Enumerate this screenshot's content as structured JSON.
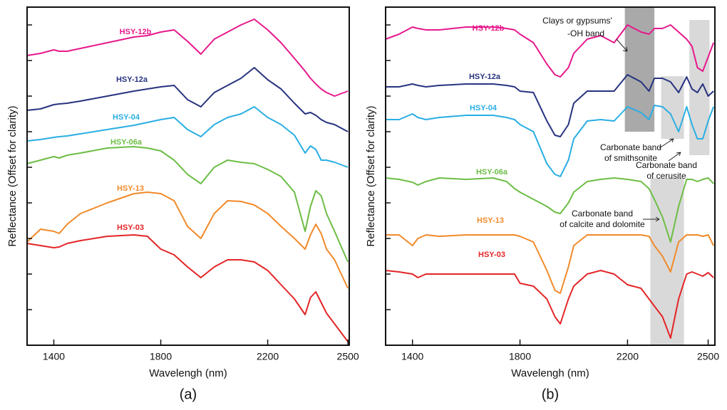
{
  "chart_data": [
    {
      "type": "line",
      "panel_label": "(a)",
      "xlabel": "Wavelengh (nm)",
      "ylabel": "Reflectance (Offset for clarity)",
      "xlim": [
        1300,
        2505
      ],
      "ylim": [
        0,
        475
      ],
      "xticks": [
        1400,
        1800,
        2200,
        2500
      ],
      "yticks": [
        50,
        100,
        150,
        200,
        250,
        300,
        350,
        400,
        450
      ],
      "x": [
        1300,
        1350,
        1400,
        1420,
        1450,
        1500,
        1600,
        1700,
        1750,
        1800,
        1850,
        1900,
        1950,
        2000,
        2050,
        2100,
        2150,
        2200,
        2250,
        2300,
        2340,
        2360,
        2380,
        2400,
        2420,
        2450,
        2500
      ],
      "series": [
        {
          "name": "HSY-12b",
          "color": "#e6198c",
          "values": [
            407,
            410,
            415,
            413,
            413,
            417,
            425,
            433,
            435,
            440,
            443,
            427,
            409,
            430,
            440,
            450,
            458,
            443,
            425,
            403,
            385,
            375,
            367,
            360,
            355,
            350,
            357
          ]
        },
        {
          "name": "HSY-12a",
          "color": "#27337f",
          "values": [
            330,
            332,
            338,
            339,
            340,
            343,
            350,
            357,
            360,
            363,
            365,
            345,
            335,
            355,
            365,
            375,
            390,
            373,
            360,
            340,
            325,
            327,
            323,
            317,
            313,
            310,
            300
          ]
        },
        {
          "name": "HSY-04",
          "color": "#2aaee3",
          "values": [
            287,
            289,
            292,
            293,
            294,
            297,
            303,
            309,
            313,
            317,
            320,
            303,
            293,
            310,
            320,
            325,
            335,
            320,
            310,
            295,
            270,
            280,
            275,
            260,
            260,
            257,
            250
          ]
        },
        {
          "name": "HSY-06a",
          "color": "#6cbd45",
          "values": [
            255,
            260,
            265,
            263,
            267,
            270,
            277,
            279,
            277,
            273,
            260,
            240,
            227,
            250,
            260,
            257,
            255,
            247,
            237,
            215,
            160,
            195,
            217,
            210,
            185,
            160,
            117
          ]
        },
        {
          "name": "HSY-13",
          "color": "#f18a2a",
          "values": [
            145,
            163,
            160,
            157,
            170,
            185,
            200,
            213,
            215,
            213,
            203,
            167,
            150,
            185,
            203,
            202,
            197,
            185,
            167,
            150,
            135,
            155,
            170,
            157,
            135,
            120,
            80
          ]
        },
        {
          "name": "HSY-03",
          "color": "#e42527",
          "values": [
            143,
            140,
            137,
            138,
            143,
            147,
            153,
            155,
            153,
            135,
            127,
            110,
            95,
            110,
            120,
            120,
            117,
            105,
            85,
            65,
            43,
            67,
            75,
            60,
            45,
            30,
            5
          ]
        }
      ]
    },
    {
      "type": "line",
      "panel_label": "(b)",
      "xlabel": "Wavelengh (nm)",
      "ylabel": "Reflectance (Offset for clarity)",
      "xlim": [
        1300,
        2525
      ],
      "ylim": [
        0,
        475
      ],
      "xticks": [
        1400,
        1800,
        2200,
        2500
      ],
      "yticks": [
        50,
        100,
        150,
        200,
        250,
        300,
        350,
        400,
        450
      ],
      "x": [
        1300,
        1350,
        1400,
        1420,
        1450,
        1500,
        1600,
        1700,
        1750,
        1780,
        1800,
        1850,
        1900,
        1930,
        1950,
        1980,
        2000,
        2050,
        2100,
        2150,
        2200,
        2250,
        2280,
        2300,
        2330,
        2360,
        2390,
        2420,
        2440,
        2460,
        2480,
        2500,
        2520
      ],
      "series": [
        {
          "name": "HSY-12b",
          "color": "#e6198c",
          "values": [
            430,
            437,
            447,
            445,
            443,
            443,
            447,
            447,
            445,
            443,
            437,
            425,
            395,
            380,
            377,
            390,
            410,
            430,
            435,
            425,
            450,
            440,
            437,
            445,
            445,
            450,
            440,
            430,
            420,
            390,
            385,
            405,
            425
          ]
        },
        {
          "name": "HSY-12a",
          "color": "#27337f",
          "values": [
            363,
            363,
            367,
            365,
            363,
            365,
            367,
            367,
            365,
            363,
            357,
            355,
            315,
            295,
            293,
            310,
            340,
            357,
            357,
            357,
            380,
            370,
            357,
            375,
            375,
            370,
            355,
            377,
            360,
            355,
            367,
            350,
            357
          ]
        },
        {
          "name": "HSY-04",
          "color": "#2aaee3",
          "values": [
            317,
            317,
            325,
            320,
            317,
            320,
            323,
            323,
            320,
            317,
            310,
            300,
            255,
            240,
            237,
            260,
            290,
            315,
            317,
            315,
            335,
            327,
            317,
            337,
            335,
            325,
            300,
            335,
            310,
            290,
            290,
            315,
            335
          ]
        },
        {
          "name": "HSY-06a",
          "color": "#6cbd45",
          "values": [
            235,
            233,
            229,
            225,
            230,
            235,
            233,
            235,
            230,
            220,
            215,
            205,
            195,
            187,
            185,
            200,
            215,
            230,
            233,
            235,
            233,
            230,
            220,
            205,
            180,
            145,
            195,
            233,
            233,
            230,
            233,
            235,
            227
          ]
        },
        {
          "name": "HSY-13",
          "color": "#f18a2a",
          "values": [
            155,
            155,
            140,
            150,
            155,
            153,
            155,
            155,
            155,
            155,
            153,
            145,
            105,
            77,
            73,
            110,
            140,
            155,
            155,
            155,
            155,
            155,
            153,
            140,
            125,
            103,
            145,
            155,
            155,
            155,
            153,
            155,
            140
          ]
        },
        {
          "name": "HSY-03",
          "color": "#e42527",
          "values": [
            105,
            103,
            100,
            95,
            100,
            100,
            100,
            100,
            100,
            100,
            87,
            83,
            65,
            40,
            30,
            65,
            83,
            100,
            105,
            100,
            85,
            80,
            65,
            55,
            40,
            10,
            65,
            100,
            103,
            100,
            97,
            102,
            95
          ]
        }
      ],
      "bands": [
        {
          "x": [
            2190,
            2300
          ],
          "color": "#a9a9a9"
        },
        {
          "x": [
            2430,
            2505
          ],
          "color": "#d9d9d9"
        },
        {
          "x": [
            2325,
            2410
          ],
          "color": "#d9d9d9"
        },
        {
          "x": [
            2285,
            2410
          ],
          "color": "#d9d9d9"
        }
      ],
      "annotations": [
        {
          "lines": [
            "Clays or gypsums'",
            "-OH band"
          ]
        },
        {
          "lines": [
            "Carbonate band",
            "of smithsonite"
          ]
        },
        {
          "lines": [
            "Carbonate  band",
            "of cerusite"
          ]
        },
        {
          "lines": [
            "Carbonate band",
            "of calcite and dolomite"
          ]
        }
      ]
    }
  ]
}
